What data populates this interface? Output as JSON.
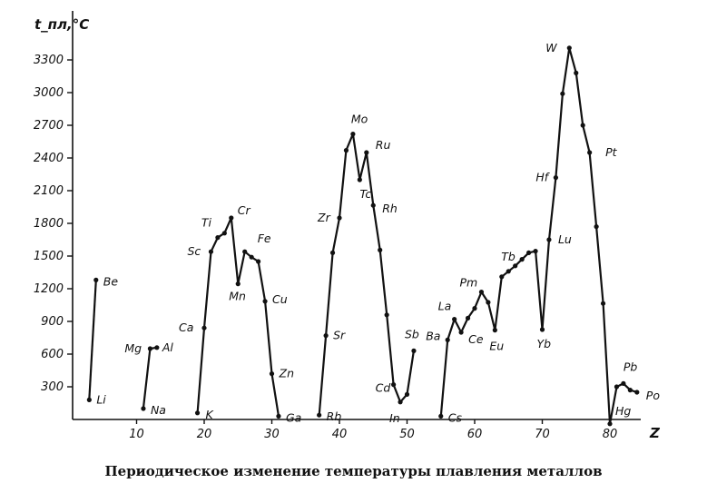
{
  "caption": "Периодическое изменение температуры плавления металлов",
  "chart_data": {
    "type": "line",
    "title": "",
    "ylabel": "t_пл,°C",
    "xlabel": "Z",
    "xlim": [
      0,
      87
    ],
    "ylim": [
      0,
      3600
    ],
    "xticks": [
      10,
      20,
      30,
      40,
      50,
      60,
      70,
      80
    ],
    "yticks": [
      300,
      600,
      900,
      1200,
      1500,
      1800,
      2100,
      2400,
      2700,
      3000,
      3300
    ],
    "grid": false,
    "series": [
      {
        "points": [
          [
            3,
            180
          ],
          [
            4,
            1280
          ]
        ]
      },
      {
        "points": [
          [
            11,
            100
          ],
          [
            12,
            650
          ],
          [
            13,
            660
          ]
        ]
      },
      {
        "points": [
          [
            19,
            60
          ],
          [
            20,
            840
          ],
          [
            21,
            1540
          ],
          [
            22,
            1670
          ],
          [
            23,
            1710
          ],
          [
            24,
            1850
          ],
          [
            25,
            1245
          ],
          [
            26,
            1540
          ],
          [
            27,
            1490
          ],
          [
            28,
            1450
          ],
          [
            29,
            1085
          ],
          [
            30,
            420
          ],
          [
            31,
            30
          ]
        ]
      },
      {
        "points": [
          [
            37,
            40
          ],
          [
            38,
            770
          ],
          [
            39,
            1530
          ],
          [
            40,
            1850
          ],
          [
            41,
            2470
          ],
          [
            42,
            2620
          ],
          [
            43,
            2200
          ],
          [
            44,
            2450
          ],
          [
            45,
            1965
          ],
          [
            46,
            1555
          ],
          [
            47,
            960
          ],
          [
            48,
            320
          ],
          [
            49,
            160
          ],
          [
            50,
            230
          ],
          [
            51,
            630
          ]
        ]
      },
      {
        "points": [
          [
            55,
            30
          ],
          [
            56,
            730
          ],
          [
            57,
            920
          ],
          [
            58,
            800
          ],
          [
            59,
            930
          ],
          [
            60,
            1020
          ],
          [
            61,
            1170
          ],
          [
            62,
            1075
          ],
          [
            63,
            820
          ],
          [
            64,
            1310
          ],
          [
            65,
            1360
          ],
          [
            66,
            1410
          ],
          [
            67,
            1470
          ],
          [
            68,
            1530
          ],
          [
            69,
            1545
          ],
          [
            70,
            825
          ],
          [
            71,
            1650
          ],
          [
            72,
            2220
          ],
          [
            73,
            2990
          ],
          [
            74,
            3410
          ],
          [
            75,
            3180
          ],
          [
            76,
            2700
          ],
          [
            77,
            2450
          ],
          [
            78,
            1770
          ],
          [
            79,
            1065
          ],
          [
            80,
            -40
          ],
          [
            81,
            300
          ],
          [
            82,
            330
          ],
          [
            83,
            270
          ],
          [
            84,
            250
          ]
        ]
      }
    ],
    "labels": [
      {
        "text": "Li",
        "x": 3,
        "y": 180
      },
      {
        "text": "Be",
        "x": 4,
        "y": 1280
      },
      {
        "text": "Na",
        "x": 11,
        "y": 100
      },
      {
        "text": "Mg",
        "x": 12,
        "y": 650
      },
      {
        "text": "Al",
        "x": 13,
        "y": 660
      },
      {
        "text": "K",
        "x": 19,
        "y": 60
      },
      {
        "text": "Ca",
        "x": 20,
        "y": 840
      },
      {
        "text": "Sc",
        "x": 21,
        "y": 1540
      },
      {
        "text": "Ti",
        "x": 22,
        "y": 1670
      },
      {
        "text": "Cr",
        "x": 24,
        "y": 1850
      },
      {
        "text": "Mn",
        "x": 25,
        "y": 1245
      },
      {
        "text": "Fe",
        "x": 26,
        "y": 1540
      },
      {
        "text": "Cu",
        "x": 29,
        "y": 1085
      },
      {
        "text": "Zn",
        "x": 30,
        "y": 420
      },
      {
        "text": "Ga",
        "x": 31,
        "y": 30
      },
      {
        "text": "Rb",
        "x": 37,
        "y": 40
      },
      {
        "text": "Sr",
        "x": 38,
        "y": 770
      },
      {
        "text": "Zr",
        "x": 40,
        "y": 1850
      },
      {
        "text": "Mo",
        "x": 42,
        "y": 2620
      },
      {
        "text": "Tc",
        "x": 43,
        "y": 2200
      },
      {
        "text": "Ru",
        "x": 44,
        "y": 2450
      },
      {
        "text": "Rh",
        "x": 45,
        "y": 1965
      },
      {
        "text": "Cd",
        "x": 48,
        "y": 320
      },
      {
        "text": "In",
        "x": 49,
        "y": 160
      },
      {
        "text": "Sb",
        "x": 51,
        "y": 630
      },
      {
        "text": "Ba",
        "x": 56,
        "y": 730
      },
      {
        "text": "Cs",
        "x": 55,
        "y": 30
      },
      {
        "text": "La",
        "x": 57,
        "y": 920
      },
      {
        "text": "Ce",
        "x": 58,
        "y": 800
      },
      {
        "text": "Pm",
        "x": 61,
        "y": 1170
      },
      {
        "text": "Eu",
        "x": 63,
        "y": 820
      },
      {
        "text": "Tb",
        "x": 65,
        "y": 1360
      },
      {
        "text": "Yb",
        "x": 70,
        "y": 825
      },
      {
        "text": "Lu",
        "x": 71,
        "y": 1650
      },
      {
        "text": "Hf",
        "x": 72,
        "y": 2220
      },
      {
        "text": "W",
        "x": 74,
        "y": 3410
      },
      {
        "text": "Pt",
        "x": 78,
        "y": 2450
      },
      {
        "text": "Pb",
        "x": 82,
        "y": 330
      },
      {
        "text": "Hg",
        "x": 80,
        "y": -40
      },
      {
        "text": "Po",
        "x": 84,
        "y": 250
      }
    ]
  }
}
